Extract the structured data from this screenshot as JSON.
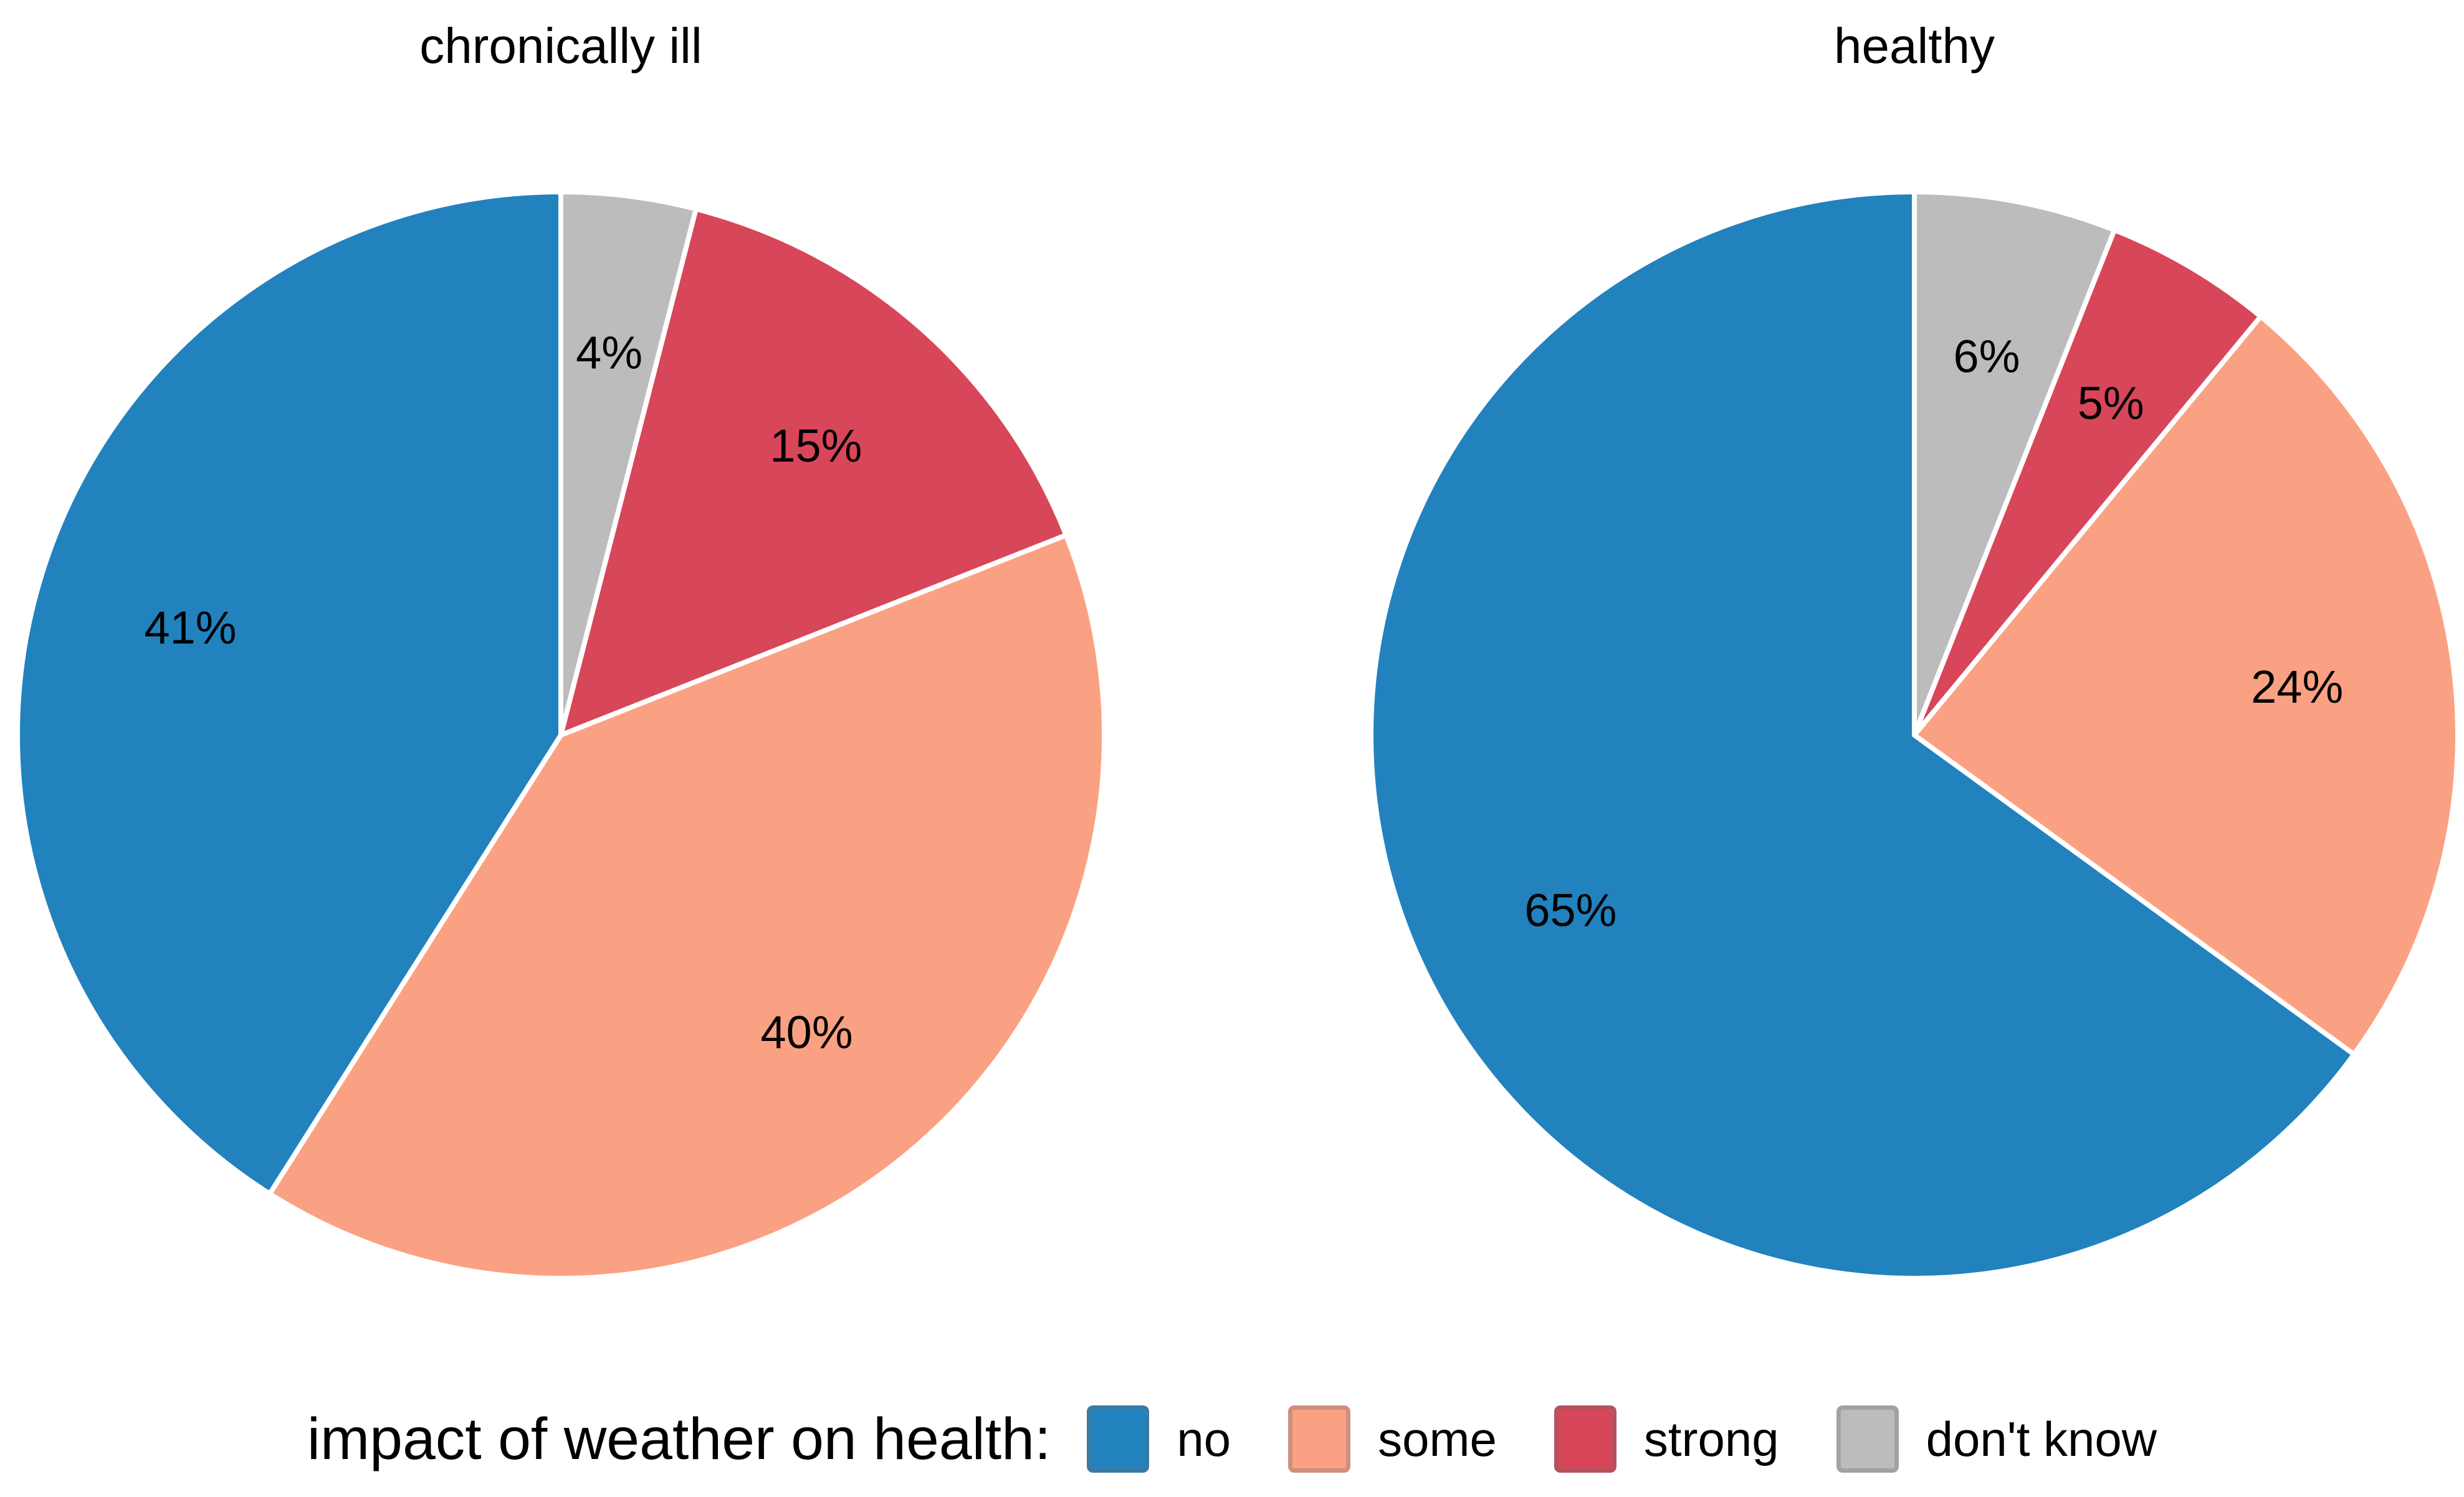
{
  "figure": {
    "background": "#ffffff",
    "text_color": "#000000"
  },
  "chart_data": [
    {
      "type": "pie",
      "title": "chronically ill",
      "categories": [
        "no",
        "some",
        "strong",
        "don't know"
      ],
      "slices": [
        {
          "category": "no",
          "value": 41,
          "label": "41%",
          "color": "#2182BE"
        },
        {
          "category": "some",
          "value": 40,
          "label": "40%",
          "color": "#FBA183"
        },
        {
          "category": "strong",
          "value": 15,
          "label": "15%",
          "color": "#D8465A"
        },
        {
          "category": "don't know",
          "value": 4,
          "label": "4%",
          "color": "#BCBCBC"
        }
      ],
      "start": "top",
      "direction": "counterclockwise",
      "order_clockwise_from_top": [
        "don't know",
        "strong",
        "some",
        "no"
      ],
      "labels_inside": true,
      "legend_position": "bottom"
    },
    {
      "type": "pie",
      "title": "healthy",
      "categories": [
        "no",
        "some",
        "strong",
        "don't know"
      ],
      "slices": [
        {
          "category": "no",
          "value": 65,
          "label": "65%",
          "color": "#2182BE"
        },
        {
          "category": "some",
          "value": 24,
          "label": "24%",
          "color": "#FBA183"
        },
        {
          "category": "strong",
          "value": 5,
          "label": "5%",
          "color": "#D8465A"
        },
        {
          "category": "don't know",
          "value": 6,
          "label": "6%",
          "color": "#BCBCBC"
        }
      ],
      "start": "top",
      "direction": "counterclockwise",
      "order_clockwise_from_top": [
        "don't know",
        "strong",
        "some",
        "no"
      ],
      "labels_inside": true,
      "legend_position": "bottom"
    }
  ],
  "legend": {
    "title": "impact of weather on health:",
    "position": "bottom",
    "items": [
      {
        "label": "no",
        "color": "#2182BE"
      },
      {
        "label": "some",
        "color": "#FBA183"
      },
      {
        "label": "strong",
        "color": "#D8465A"
      },
      {
        "label": "don't know",
        "color": "#BCBCBC"
      }
    ]
  }
}
